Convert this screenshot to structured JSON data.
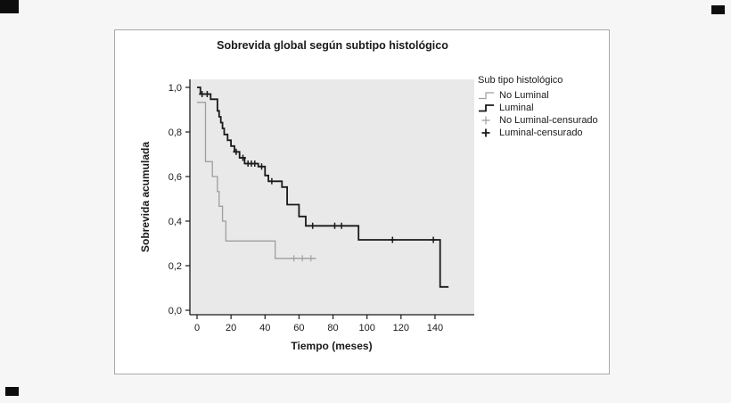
{
  "chart_data": {
    "type": "line",
    "subtype": "kaplan-meier-step",
    "title": "Sobrevida global según subtipo histológico",
    "xlabel": "Tiempo (meses)",
    "ylabel": "Sobrevida acumulada",
    "xlim": [
      -4,
      163
    ],
    "ylim": [
      -0.02,
      1.04
    ],
    "xticks": [
      0,
      20,
      40,
      60,
      80,
      100,
      120,
      140
    ],
    "yticks": [
      0.0,
      0.2,
      0.4,
      0.6,
      0.8,
      1.0
    ],
    "ytick_labels": [
      "0,0",
      "0,2",
      "0,4",
      "0,6",
      "0,8",
      "1,0"
    ],
    "grid": false,
    "plot_bg": "#e9e9e9",
    "axis_color": "#1a1a1a",
    "legend_position": "right",
    "legend_title": "Sub tipo histológico",
    "legend_items": [
      {
        "label": "No Luminal",
        "symbol": "step-line",
        "color": "#9e9e9e",
        "bold": false
      },
      {
        "label": "Luminal",
        "symbol": "step-line",
        "color": "#1a1a1a",
        "bold": true
      },
      {
        "label": "No Luminal-censurado",
        "symbol": "plus",
        "color": "#9e9e9e",
        "bold": false
      },
      {
        "label": "Luminal-censurado",
        "symbol": "plus",
        "color": "#1a1a1a",
        "bold": true
      }
    ],
    "series": [
      {
        "name": "No Luminal",
        "color": "#9e9e9e",
        "width": 1.3,
        "censor_width": 1.1,
        "steps": [
          [
            0,
            0.933
          ],
          [
            5,
            0.667
          ],
          [
            9,
            0.6
          ],
          [
            12,
            0.533
          ],
          [
            13,
            0.467
          ],
          [
            15,
            0.4
          ],
          [
            17,
            0.311
          ],
          [
            46,
            0.233
          ],
          [
            70,
            0.233
          ]
        ],
        "censored": [
          [
            57,
            0.233
          ],
          [
            62,
            0.233
          ],
          [
            67,
            0.233
          ]
        ]
      },
      {
        "name": "Luminal",
        "color": "#1a1a1a",
        "width": 1.8,
        "censor_width": 1.5,
        "steps": [
          [
            0,
            1.0
          ],
          [
            2,
            0.97
          ],
          [
            8,
            0.947
          ],
          [
            12,
            0.895
          ],
          [
            13,
            0.868
          ],
          [
            14,
            0.842
          ],
          [
            15,
            0.816
          ],
          [
            16,
            0.789
          ],
          [
            18,
            0.763
          ],
          [
            20,
            0.737
          ],
          [
            22,
            0.711
          ],
          [
            25,
            0.684
          ],
          [
            28,
            0.658
          ],
          [
            36,
            0.645
          ],
          [
            40,
            0.605
          ],
          [
            42,
            0.579
          ],
          [
            50,
            0.553
          ],
          [
            53,
            0.474
          ],
          [
            60,
            0.421
          ],
          [
            64,
            0.379
          ],
          [
            95,
            0.316
          ],
          [
            143,
            0.105
          ],
          [
            148,
            0.105
          ]
        ],
        "censored": [
          [
            3,
            0.97
          ],
          [
            6,
            0.97
          ],
          [
            23,
            0.711
          ],
          [
            27,
            0.684
          ],
          [
            30,
            0.658
          ],
          [
            32,
            0.658
          ],
          [
            34,
            0.658
          ],
          [
            38,
            0.645
          ],
          [
            44,
            0.579
          ],
          [
            68,
            0.379
          ],
          [
            81,
            0.379
          ],
          [
            85,
            0.379
          ],
          [
            115,
            0.316
          ],
          [
            139,
            0.316
          ]
        ]
      }
    ]
  }
}
